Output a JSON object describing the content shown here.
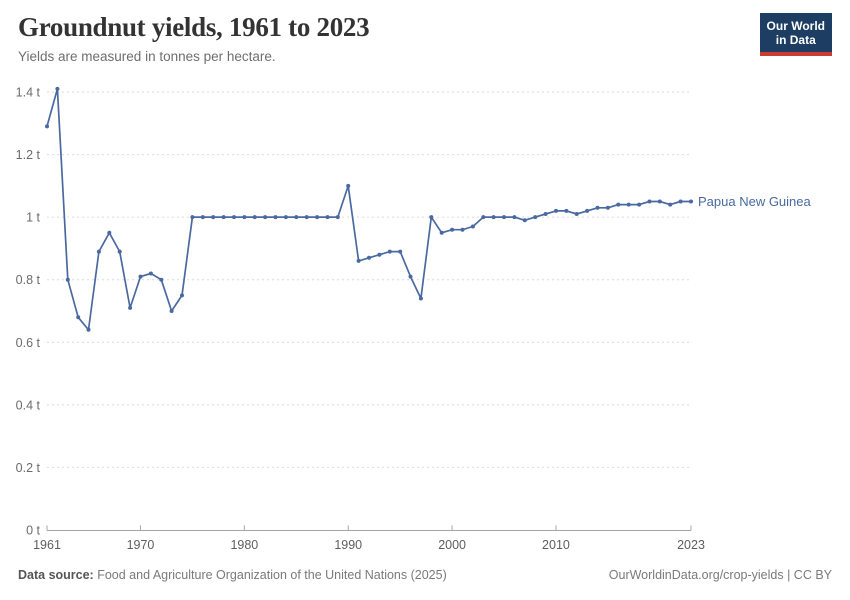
{
  "header": {
    "title": "Groundnut yields, 1961 to 2023",
    "subtitle": "Yields are measured in tonnes per hectare.",
    "logo": {
      "line1": "Our World",
      "line2": "in Data",
      "bg_color": "#1d3d63",
      "accent_color": "#c93c32"
    }
  },
  "chart_data": {
    "type": "line",
    "title": "Groundnut yields, 1961 to 2023",
    "ylabel": "tonnes per hectare",
    "xlabel": "",
    "xlim": [
      1961,
      2023
    ],
    "ylim": [
      0,
      1.4
    ],
    "grid": "horizontal-dashed",
    "legend_position": "end-of-line-label",
    "yticks": [
      0,
      0.2,
      0.4,
      0.6,
      0.8,
      1,
      1.2,
      1.4
    ],
    "ytick_labels": [
      "0 t",
      "0.2 t",
      "0.4 t",
      "0.6 t",
      "0.8 t",
      "1 t",
      "1.2 t",
      "1.4 t"
    ],
    "xticks": [
      1961,
      1970,
      1980,
      1990,
      2000,
      2010,
      2023
    ],
    "xtick_labels": [
      "1961",
      "1970",
      "1980",
      "1990",
      "2000",
      "2010",
      "2023"
    ],
    "x": [
      1961,
      1962,
      1963,
      1964,
      1965,
      1966,
      1967,
      1968,
      1969,
      1970,
      1971,
      1972,
      1973,
      1974,
      1975,
      1976,
      1977,
      1978,
      1979,
      1980,
      1981,
      1982,
      1983,
      1984,
      1985,
      1986,
      1987,
      1988,
      1989,
      1990,
      1991,
      1992,
      1993,
      1994,
      1995,
      1996,
      1997,
      1998,
      1999,
      2000,
      2001,
      2002,
      2003,
      2004,
      2005,
      2006,
      2007,
      2008,
      2009,
      2010,
      2011,
      2012,
      2013,
      2014,
      2015,
      2016,
      2017,
      2018,
      2019,
      2020,
      2021,
      2022,
      2023
    ],
    "series": [
      {
        "name": "Papua New Guinea",
        "color": "#4a69a0",
        "values": [
          1.29,
          1.41,
          0.8,
          0.68,
          0.64,
          0.89,
          0.95,
          0.89,
          0.71,
          0.81,
          0.82,
          0.8,
          0.7,
          0.75,
          1.0,
          1.0,
          1.0,
          1.0,
          1.0,
          1.0,
          1.0,
          1.0,
          1.0,
          1.0,
          1.0,
          1.0,
          1.0,
          1.0,
          1.0,
          1.1,
          0.86,
          0.87,
          0.88,
          0.89,
          0.89,
          0.81,
          0.74,
          1.0,
          0.95,
          0.96,
          0.96,
          0.97,
          1.0,
          1.0,
          1.0,
          1.0,
          0.99,
          1.0,
          1.01,
          1.02,
          1.02,
          1.01,
          1.02,
          1.03,
          1.03,
          1.04,
          1.04,
          1.04,
          1.05,
          1.05,
          1.04,
          1.05,
          1.05
        ]
      }
    ],
    "axis_color": "#a5a5a5",
    "gridline_color": "#dbdbdb"
  },
  "footer": {
    "source_label": "Data source:",
    "source_value": "Food and Agriculture Organization of the United Nations (2025)",
    "credit": "OurWorldinData.org/crop-yields | CC BY"
  }
}
